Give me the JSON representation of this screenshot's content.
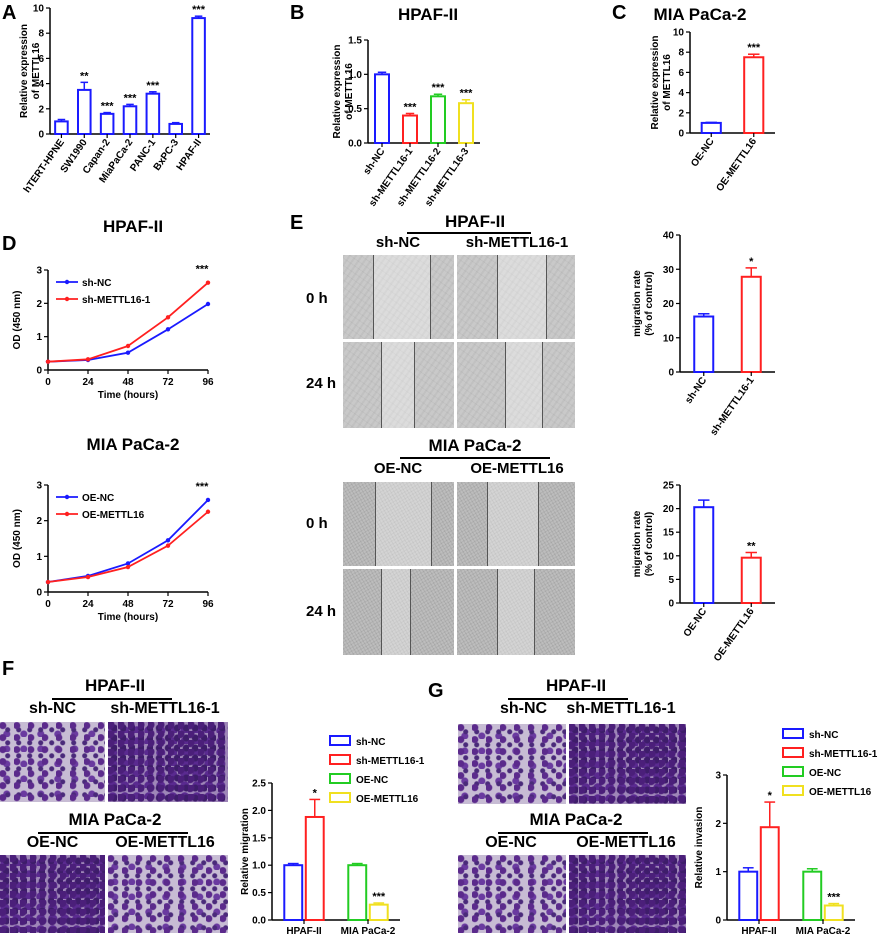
{
  "figure": {
    "panel_labels": [
      "A",
      "B",
      "C",
      "D",
      "E",
      "F",
      "G"
    ]
  },
  "colors": {
    "blue": "#1a1aff",
    "red": "#ff2020",
    "green": "#22cc22",
    "yellow": "#f0e020",
    "black": "#000000"
  },
  "panelE": {
    "top_title": "HPAF-II",
    "top_cols": [
      "sh-NC",
      "sh-METTL16-1"
    ],
    "bottom_title": "MIA PaCa-2",
    "bottom_cols": [
      "OE-NC",
      "OE-METTL16"
    ],
    "rows": [
      "0 h",
      "24 h"
    ]
  },
  "panelF": {
    "top_title": "HPAF-II",
    "top_cols": [
      "sh-NC",
      "sh-METTL16-1"
    ],
    "bottom_title": "MIA PaCa-2",
    "bottom_cols": [
      "OE-NC",
      "OE-METTL16"
    ]
  },
  "panelG": {
    "top_title": "HPAF-II",
    "top_cols": [
      "sh-NC",
      "sh-METTL16-1"
    ],
    "bottom_title": "MIA PaCa-2",
    "bottom_cols": [
      "OE-NC",
      "OE-METTL16"
    ]
  },
  "chart_data": [
    {
      "id": "A",
      "type": "bar",
      "title": "",
      "ylabel": "Relative  expression of METTL16",
      "xlabel": "",
      "categories": [
        "hTERT-HPNE",
        "SW1990",
        "Capan-2",
        "MiaPaCa-2",
        "PANC-1",
        "BxPC-3",
        "HPAF-II"
      ],
      "values": [
        1.0,
        3.5,
        1.6,
        2.2,
        3.2,
        0.8,
        9.2
      ],
      "errors": [
        0.15,
        0.6,
        0.1,
        0.15,
        0.15,
        0.1,
        0.15
      ],
      "significance": [
        "",
        "**",
        "***",
        "***",
        "***",
        "",
        "***"
      ],
      "colors": [
        "#1a1aff",
        "#1a1aff",
        "#1a1aff",
        "#1a1aff",
        "#1a1aff",
        "#1a1aff",
        "#1a1aff"
      ],
      "yticks": [
        0,
        2,
        4,
        6,
        8,
        10
      ],
      "ylim": [
        0,
        10
      ]
    },
    {
      "id": "B",
      "type": "bar",
      "title": "HPAF-II",
      "ylabel": "Relative expression of METTL16",
      "xlabel": "",
      "categories": [
        "sh-NC",
        "sh-METTL16-1",
        "sh-METTL16-2",
        "sh-METTL16-3"
      ],
      "values": [
        1.0,
        0.4,
        0.68,
        0.58
      ],
      "errors": [
        0.03,
        0.03,
        0.03,
        0.05
      ],
      "significance": [
        "",
        "***",
        "***",
        "***"
      ],
      "colors": [
        "#1a1aff",
        "#ff2020",
        "#22cc22",
        "#f0e020"
      ],
      "yticks": [
        0.0,
        0.5,
        1.0,
        1.5
      ],
      "ylim": [
        0,
        1.5
      ]
    },
    {
      "id": "C",
      "type": "bar",
      "title": "MIA PaCa-2",
      "ylabel": "Relative expression of METTL16",
      "xlabel": "",
      "categories": [
        "OE-NC",
        "OE-METTL16"
      ],
      "values": [
        1.0,
        7.5
      ],
      "errors": [
        0.05,
        0.3
      ],
      "significance": [
        "",
        "***"
      ],
      "colors": [
        "#1a1aff",
        "#ff2020"
      ],
      "yticks": [
        0,
        2,
        4,
        6,
        8,
        10
      ],
      "ylim": [
        0,
        10
      ]
    },
    {
      "id": "D1",
      "type": "line",
      "title": "HPAF-II",
      "xlabel": "Time (hours)",
      "ylabel": "OD  (450 nm)",
      "x": [
        0,
        24,
        48,
        72,
        96
      ],
      "series": [
        {
          "name": "sh-NC",
          "values": [
            0.25,
            0.3,
            0.52,
            1.22,
            1.98
          ],
          "color": "#1a1aff"
        },
        {
          "name": "sh-METTL16-1",
          "values": [
            0.25,
            0.32,
            0.72,
            1.58,
            2.62
          ],
          "color": "#ff2020"
        }
      ],
      "annotation": "***",
      "xticks": [
        0,
        24,
        48,
        72,
        96
      ],
      "yticks": [
        0,
        1,
        2,
        3
      ],
      "ylim": [
        0,
        3
      ],
      "xlim": [
        0,
        96
      ]
    },
    {
      "id": "D2",
      "type": "line",
      "title": "MIA PaCa-2",
      "xlabel": "Time (hours)",
      "ylabel": "OD  (450 nm)",
      "x": [
        0,
        24,
        48,
        72,
        96
      ],
      "series": [
        {
          "name": "OE-NC",
          "values": [
            0.28,
            0.45,
            0.8,
            1.45,
            2.58
          ],
          "color": "#1a1aff"
        },
        {
          "name": "OE-METTL16",
          "values": [
            0.28,
            0.42,
            0.7,
            1.3,
            2.25
          ],
          "color": "#ff2020"
        }
      ],
      "annotation": "***",
      "xticks": [
        0,
        24,
        48,
        72,
        96
      ],
      "yticks": [
        0,
        1,
        2,
        3
      ],
      "ylim": [
        0,
        3
      ],
      "xlim": [
        0,
        96
      ]
    },
    {
      "id": "E1",
      "type": "bar",
      "title": "",
      "ylabel": "migration rate (% of control)",
      "xlabel": "",
      "categories": [
        "sh-NC",
        "sh-METTL16-1"
      ],
      "values": [
        16.2,
        27.8
      ],
      "errors": [
        0.8,
        2.6
      ],
      "significance": [
        "",
        "*"
      ],
      "colors": [
        "#1a1aff",
        "#ff2020"
      ],
      "yticks": [
        0,
        10,
        20,
        30,
        40
      ],
      "ylim": [
        0,
        40
      ]
    },
    {
      "id": "E2",
      "type": "bar",
      "title": "",
      "ylabel": "migration rate (% of control)",
      "xlabel": "",
      "categories": [
        "OE-NC",
        "OE-METTL16"
      ],
      "values": [
        20.3,
        9.6
      ],
      "errors": [
        1.5,
        1.1
      ],
      "significance": [
        "",
        "**"
      ],
      "colors": [
        "#1a1aff",
        "#ff2020"
      ],
      "yticks": [
        0,
        5,
        10,
        15,
        20,
        25
      ],
      "ylim": [
        0,
        25
      ]
    },
    {
      "id": "F",
      "type": "bar",
      "title": "",
      "ylabel": "Relative  migration",
      "xlabel": "",
      "categories": [
        "HPAF-II",
        "MIA PaCa-2"
      ],
      "series": [
        {
          "name": "sh-NC",
          "values": [
            1.0,
            null
          ],
          "errors": [
            0.03,
            null
          ],
          "color": "#1a1aff"
        },
        {
          "name": "sh-METTL16-1",
          "values": [
            1.88,
            null
          ],
          "errors": [
            0.32,
            null
          ],
          "color": "#ff2020",
          "sig": "*"
        },
        {
          "name": "OE-NC",
          "values": [
            null,
            1.0
          ],
          "errors": [
            null,
            0.03
          ],
          "color": "#22cc22"
        },
        {
          "name": "OE-METTL16",
          "values": [
            null,
            0.28
          ],
          "errors": [
            null,
            0.03
          ],
          "color": "#f0e020",
          "sig": "***"
        }
      ],
      "yticks": [
        0.0,
        0.5,
        1.0,
        1.5,
        2.0,
        2.5
      ],
      "ylim": [
        0,
        2.5
      ],
      "legend": [
        "sh-NC",
        "sh-METTL16-1",
        "OE-NC",
        "OE-METTL16"
      ]
    },
    {
      "id": "G",
      "type": "bar",
      "title": "",
      "ylabel": "Relative invasion",
      "xlabel": "",
      "categories": [
        "HPAF-II",
        "MIA PaCa-2"
      ],
      "series": [
        {
          "name": "sh-NC",
          "values": [
            1.0,
            null
          ],
          "errors": [
            0.08,
            null
          ],
          "color": "#1a1aff"
        },
        {
          "name": "sh-METTL16-1",
          "values": [
            1.92,
            null
          ],
          "errors": [
            0.52,
            null
          ],
          "color": "#ff2020",
          "sig": "*"
        },
        {
          "name": "OE-NC",
          "values": [
            null,
            1.0
          ],
          "errors": [
            null,
            0.06
          ],
          "color": "#22cc22"
        },
        {
          "name": "OE-METTL16",
          "values": [
            null,
            0.3
          ],
          "errors": [
            null,
            0.04
          ],
          "color": "#f0e020",
          "sig": "***"
        }
      ],
      "yticks": [
        0,
        1,
        2,
        3
      ],
      "ylim": [
        0,
        3
      ],
      "legend": [
        "sh-NC",
        "sh-METTL16-1",
        "OE-NC",
        "OE-METTL16"
      ]
    }
  ]
}
